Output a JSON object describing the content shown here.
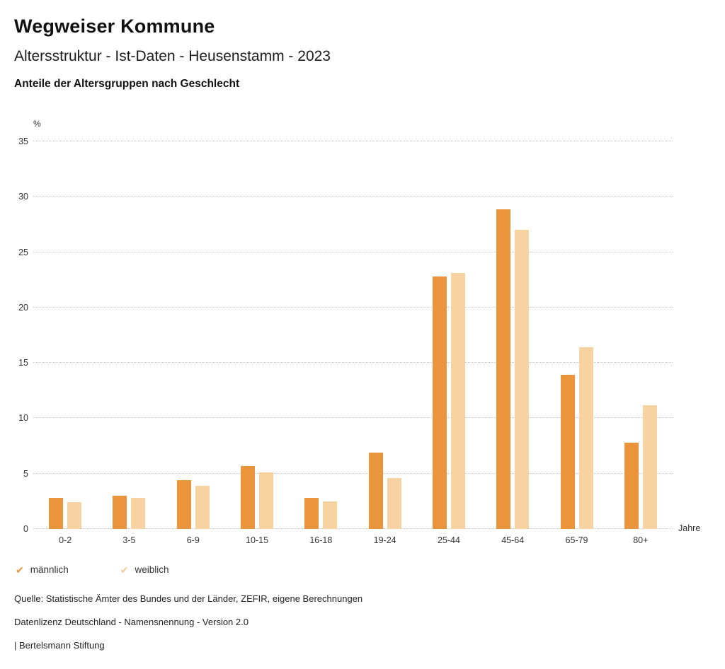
{
  "header": {
    "title": "Wegweiser Kommune",
    "subtitle": "Altersstruktur - Ist-Daten - Heusenstamm - 2023",
    "chart_heading": "Anteile der Altersgruppen nach Geschlecht"
  },
  "chart_data": {
    "type": "bar",
    "title": "Anteile der Altersgruppen nach Geschlecht",
    "categories": [
      "0-2",
      "3-5",
      "6-9",
      "10-15",
      "16-18",
      "19-24",
      "25-44",
      "45-64",
      "65-79",
      "80+"
    ],
    "series": [
      {
        "name": "männlich",
        "color": "#EA943B",
        "values": [
          2.8,
          3.0,
          4.4,
          5.7,
          2.8,
          6.9,
          22.8,
          28.9,
          13.9,
          7.8
        ]
      },
      {
        "name": "weiblich",
        "color": "#F7D3A2",
        "values": [
          2.4,
          2.8,
          3.9,
          5.1,
          2.5,
          4.6,
          23.1,
          27.0,
          16.4,
          11.2
        ]
      }
    ],
    "ylabel": "%",
    "xlabel": "Jahre",
    "ylim": [
      0,
      35
    ],
    "ytick_step": 5,
    "grid": "dotted-horizontal",
    "legend_position": "bottom-left"
  },
  "legend": {
    "items": [
      {
        "label": "männlich",
        "color": "#EA943B",
        "marker": "✔"
      },
      {
        "label": "weiblich",
        "color": "#F2C98F",
        "marker": "✔"
      }
    ]
  },
  "footer": {
    "source": "Quelle: Statistische Ämter des Bundes und der Länder, ZEFIR, eigene Berechnungen",
    "license": "Datenlizenz Deutschland - Namensnennung - Version 2.0",
    "attribution": "| Bertelsmann Stiftung"
  }
}
